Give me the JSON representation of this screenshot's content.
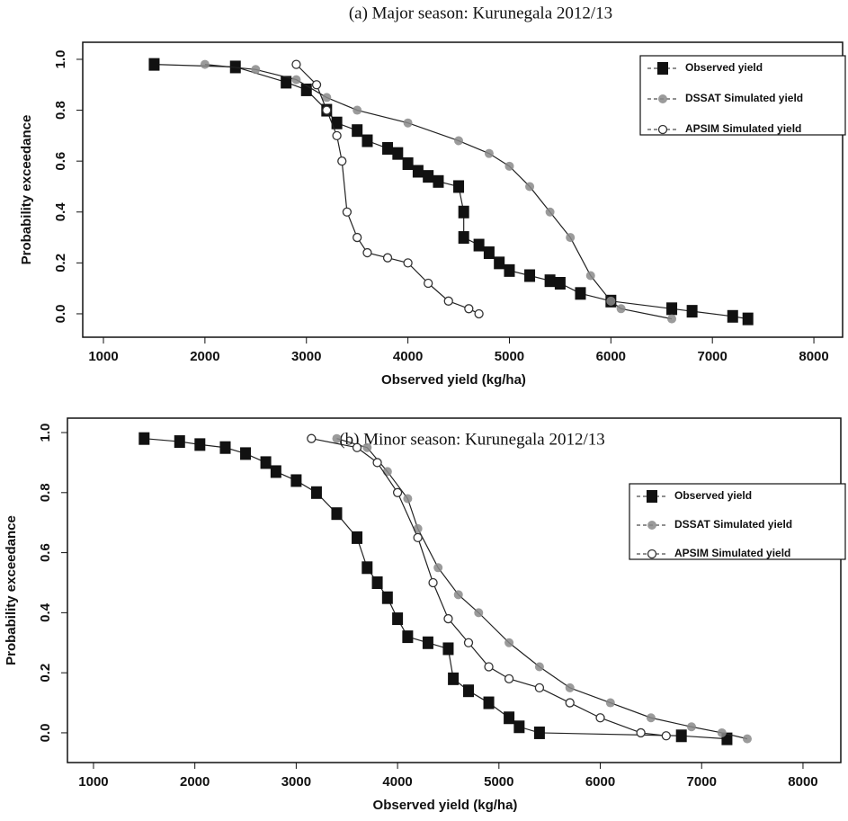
{
  "chart_data": [
    {
      "type": "line",
      "title": "(a) Major season: Kurunegala 2012/13",
      "xlabel": "Observed yield (kg/ha)",
      "ylabel": "Probability exceedance",
      "xlim": [
        796,
        8283
      ],
      "ylim": [
        -0.092,
        1.067
      ],
      "xticks": [
        1000,
        2000,
        3000,
        4000,
        5000,
        6000,
        7000,
        8000
      ],
      "yticks": [
        {
          "value": 0,
          "label": "0.0"
        },
        0.2,
        0.4,
        0.6,
        0.8,
        {
          "value": 1,
          "label": "1.0"
        }
      ],
      "legend": "top right",
      "series": [
        {
          "name": "Observed yield",
          "color": "#111111",
          "marker": "square",
          "x": [
            1500,
            2300,
            2800,
            3000,
            3200,
            3300,
            3500,
            3600,
            3800,
            3900,
            4000,
            4100,
            4200,
            4300,
            4500,
            4550,
            4550,
            4700,
            4800,
            4900,
            5000,
            5200,
            5400,
            5500,
            5700,
            6000,
            6600,
            6800,
            7200,
            7350
          ],
          "values": [
            0.98,
            0.97,
            0.91,
            0.88,
            0.8,
            0.75,
            0.72,
            0.68,
            0.65,
            0.63,
            0.59,
            0.56,
            0.54,
            0.52,
            0.5,
            0.4,
            0.3,
            0.27,
            0.24,
            0.2,
            0.17,
            0.15,
            0.13,
            0.12,
            0.08,
            0.05,
            0.02,
            0.01,
            -0.01,
            -0.02
          ]
        },
        {
          "name": "DSSAT Simulated yield",
          "color": "#8a8a8a",
          "marker": "circle",
          "x": [
            2000,
            2500,
            2900,
            3200,
            3500,
            4000,
            4500,
            4800,
            5000,
            5200,
            5400,
            5600,
            5800,
            6000,
            6100,
            6600
          ],
          "values": [
            0.98,
            0.96,
            0.92,
            0.85,
            0.8,
            0.75,
            0.68,
            0.63,
            0.58,
            0.5,
            0.4,
            0.3,
            0.15,
            0.05,
            0.02,
            -0.02
          ]
        },
        {
          "name": "APSIM Simulated yield",
          "color": "#333333",
          "marker": "open-circle",
          "x": [
            2900,
            3100,
            3200,
            3300,
            3350,
            3400,
            3500,
            3600,
            3800,
            4000,
            4200,
            4400,
            4600,
            4700
          ],
          "values": [
            0.98,
            0.9,
            0.8,
            0.7,
            0.6,
            0.4,
            0.3,
            0.24,
            0.22,
            0.2,
            0.12,
            0.05,
            0.02,
            0.0
          ]
        }
      ]
    },
    {
      "type": "line",
      "title": "(b) Minor season: Kurunegala 2012/13",
      "xlabel": "Observed yield (kg/ha)",
      "ylabel": "Probability exceedance",
      "xlim": [
        743,
        8373
      ],
      "ylim": [
        -0.099,
        1.048
      ],
      "xticks": [
        1000,
        2000,
        3000,
        4000,
        5000,
        6000,
        7000,
        8000
      ],
      "yticks": [
        {
          "value": 0,
          "label": "0.0"
        },
        0.2,
        0.4,
        0.6,
        0.8,
        {
          "value": 1,
          "label": "1.0"
        }
      ],
      "legend": "top right",
      "series": [
        {
          "name": "Observed yield",
          "color": "#111111",
          "marker": "square",
          "x": [
            1500,
            1850,
            2050,
            2300,
            2500,
            2700,
            2800,
            3000,
            3200,
            3400,
            3600,
            3700,
            3800,
            3900,
            4000,
            4100,
            4300,
            4500,
            4550,
            4700,
            4900,
            5100,
            5200,
            5400,
            6800,
            7250
          ],
          "values": [
            0.98,
            0.97,
            0.96,
            0.95,
            0.93,
            0.9,
            0.87,
            0.84,
            0.8,
            0.73,
            0.65,
            0.55,
            0.5,
            0.45,
            0.38,
            0.32,
            0.3,
            0.28,
            0.18,
            0.14,
            0.1,
            0.05,
            0.02,
            0.0,
            -0.01,
            -0.02
          ]
        },
        {
          "name": "DSSAT Simulated yield",
          "color": "#8a8a8a",
          "marker": "circle",
          "x": [
            3400,
            3700,
            3900,
            4100,
            4200,
            4400,
            4600,
            4800,
            5100,
            5400,
            5700,
            6100,
            6500,
            6900,
            7200,
            7450
          ],
          "values": [
            0.98,
            0.95,
            0.87,
            0.78,
            0.68,
            0.55,
            0.46,
            0.4,
            0.3,
            0.22,
            0.15,
            0.1,
            0.05,
            0.02,
            0.0,
            -0.02
          ]
        },
        {
          "name": "APSIM Simulated yield",
          "color": "#333333",
          "marker": "open-circle",
          "x": [
            3150,
            3600,
            3800,
            4000,
            4200,
            4350,
            4500,
            4700,
            4900,
            5100,
            5400,
            5700,
            6000,
            6400,
            6650
          ],
          "values": [
            0.98,
            0.95,
            0.9,
            0.8,
            0.65,
            0.5,
            0.38,
            0.3,
            0.22,
            0.18,
            0.15,
            0.1,
            0.05,
            0.0,
            -0.01
          ]
        }
      ]
    }
  ]
}
